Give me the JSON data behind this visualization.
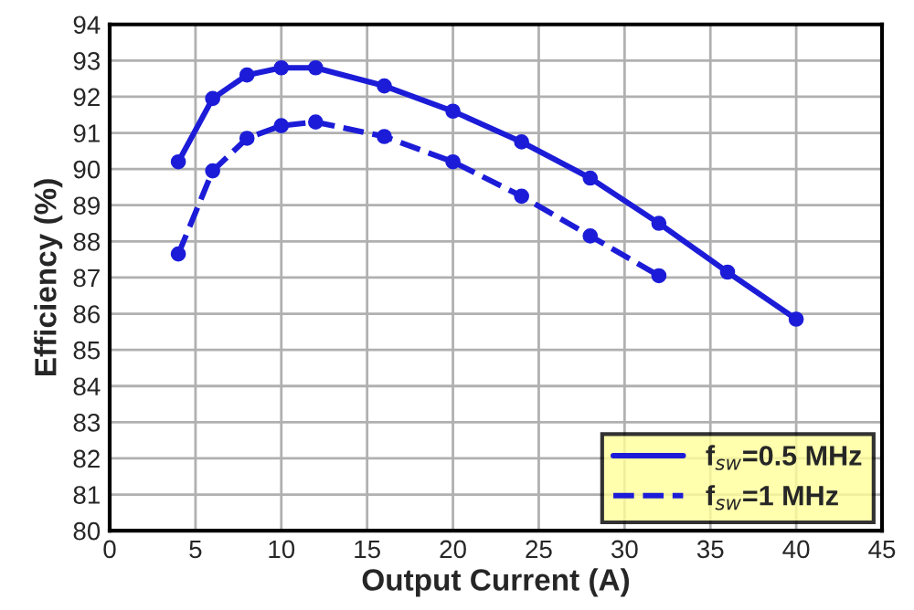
{
  "chart_data": {
    "type": "line",
    "xlabel": "Output Current (A)",
    "ylabel": "Efficiency (%)",
    "series": [
      {
        "name": "f$_{sw}$=0.5 MHz",
        "color": "#1c1cd8",
        "line_style": "solid",
        "x": [
          4,
          6,
          8,
          10,
          12,
          16,
          20,
          24,
          28,
          32,
          36,
          40
        ],
        "values": [
          90.2,
          91.95,
          92.6,
          92.8,
          92.8,
          92.3,
          91.6,
          90.75,
          89.75,
          88.5,
          87.15,
          85.85
        ]
      },
      {
        "name": "f$_{sw}$=1 MHz",
        "color": "#1c1cd8",
        "line_style": "dashed",
        "x": [
          4,
          6,
          8,
          10,
          12,
          16,
          20,
          24,
          28,
          32
        ],
        "values": [
          87.65,
          89.95,
          90.85,
          91.2,
          91.3,
          90.9,
          90.2,
          89.25,
          88.15,
          87.05
        ]
      }
    ],
    "xlim": [
      0,
      45
    ],
    "xticks": [
      0,
      5,
      10,
      15,
      20,
      25,
      30,
      35,
      40,
      45
    ],
    "ylim": [
      80,
      94
    ],
    "yticks": [
      80,
      81,
      82,
      83,
      84,
      85,
      86,
      87,
      88,
      89,
      90,
      91,
      92,
      93,
      94
    ],
    "grid": true,
    "legend": "bottom right",
    "marker": "circle"
  }
}
